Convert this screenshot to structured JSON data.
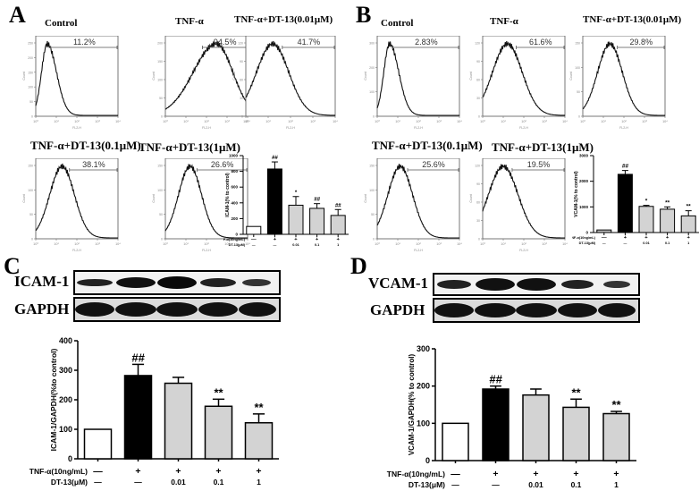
{
  "panels": {
    "A": {
      "letter": "A"
    },
    "B": {
      "letter": "B"
    },
    "C": {
      "letter": "C"
    },
    "D": {
      "letter": "D"
    }
  },
  "histograms": {
    "x_axis_label": "FL2-H",
    "y_axis_label": "Count",
    "A": [
      {
        "title": "Control",
        "percent": "11.2%",
        "ymax": 250,
        "yticks": [
          "0",
          "50",
          "100",
          "150",
          "200",
          "250"
        ]
      },
      {
        "title": "TNF-α",
        "percent": "94.5%",
        "ymax": 200,
        "yticks": [
          "0",
          "50",
          "100",
          "150",
          "200"
        ]
      },
      {
        "title": "TNF-α+DT-13(0.01μM)",
        "percent": "41.7%",
        "ymax": 120,
        "yticks": [
          "0",
          "30",
          "60",
          "90",
          "120"
        ]
      },
      {
        "title": "TNF-α+DT-13(0.1μM)",
        "percent": "38.1%",
        "ymax": 150,
        "yticks": [
          "0",
          "50",
          "100",
          "150"
        ]
      },
      {
        "title": "TNF-α+DT-13(1μM)",
        "percent": "26.6%",
        "ymax": 150,
        "yticks": [
          "0",
          "50",
          "100",
          "150"
        ]
      }
    ],
    "B": [
      {
        "title": "Control",
        "percent": "2.83%",
        "ymax": 300,
        "yticks": [
          "0",
          "100",
          "200",
          "300"
        ]
      },
      {
        "title": "TNF-α",
        "percent": "61.6%",
        "ymax": 120,
        "yticks": [
          "0",
          "30",
          "60",
          "90",
          "120"
        ]
      },
      {
        "title": "TNF-α+DT-13(0.01μM)",
        "percent": "29.8%",
        "ymax": 150,
        "yticks": [
          "0",
          "50",
          "100",
          "150"
        ]
      },
      {
        "title": "TNF-α+DT-13(0.1μM)",
        "percent": "25.6%",
        "ymax": 150,
        "yticks": [
          "0",
          "50",
          "100",
          "150"
        ]
      },
      {
        "title": "TNF-α+DT-13(1μM)",
        "percent": "19.5%",
        "ymax": 120,
        "yticks": [
          "0",
          "30",
          "60",
          "90",
          "120"
        ]
      }
    ],
    "xticks": [
      "10⁰",
      "10¹",
      "10²",
      "10³",
      "10⁴"
    ]
  },
  "blots": {
    "C": {
      "target": "ICAM-1",
      "loading": "GAPDH"
    },
    "D": {
      "target": "VCAM-1",
      "loading": "GAPDH"
    }
  },
  "conditions": {
    "tnf_label": "TNF-α(10ng/mL)",
    "dt_label": "DT-13(μM)",
    "tnf_values": [
      "—",
      "+",
      "+",
      "+",
      "+"
    ],
    "dt_values": [
      "—",
      "—",
      "0.01",
      "0.1",
      "1"
    ]
  },
  "chart_data": [
    {
      "id": "A-bar",
      "type": "bar",
      "title": "",
      "ylabel": "ICAM-1(% to control)",
      "ylim": [
        0,
        1000
      ],
      "yticks": [
        0,
        200,
        400,
        600,
        800,
        1000
      ],
      "categories": [
        "Control",
        "TNF-α",
        "TNF-α+DT-13 0.01",
        "TNF-α+DT-13 0.1",
        "TNF-α+DT-13 1"
      ],
      "values": [
        100,
        830,
        370,
        330,
        240
      ],
      "errors": [
        0,
        90,
        110,
        60,
        75
      ],
      "annotations": [
        "",
        "##",
        "*",
        "##",
        "##"
      ],
      "colors": [
        "#ffffff",
        "#000000",
        "#d3d3d3",
        "#d3d3d3",
        "#d3d3d3"
      ]
    },
    {
      "id": "B-bar",
      "type": "bar",
      "title": "",
      "ylabel": "VCAM-1(% to control)",
      "ylim": [
        0,
        3000
      ],
      "yticks": [
        0,
        1000,
        2000,
        3000
      ],
      "categories": [
        "Control",
        "TNF-α",
        "TNF-α+DT-13 0.01",
        "TNF-α+DT-13 0.1",
        "TNF-α+DT-13 1"
      ],
      "values": [
        100,
        2270,
        1020,
        910,
        650
      ],
      "errors": [
        0,
        150,
        40,
        90,
        200
      ],
      "annotations": [
        "",
        "##",
        "*",
        "**",
        "**"
      ],
      "colors": [
        "#bfbfbf",
        "#000000",
        "#d3d3d3",
        "#d3d3d3",
        "#d3d3d3"
      ]
    },
    {
      "id": "C-bar",
      "type": "bar",
      "title": "",
      "ylabel": "ICAM-1/GAPDH(%to control)",
      "ylim": [
        0,
        400
      ],
      "yticks": [
        0,
        100,
        200,
        300,
        400
      ],
      "categories": [
        "Control",
        "TNF-α",
        "TNF-α+DT-13 0.01",
        "TNF-α+DT-13 0.1",
        "TNF-α+DT-13 1"
      ],
      "values": [
        100,
        282,
        256,
        178,
        122
      ],
      "errors": [
        0,
        38,
        20,
        24,
        30
      ],
      "annotations": [
        "",
        "##",
        "",
        "**",
        "**"
      ],
      "colors": [
        "#ffffff",
        "#000000",
        "#d3d3d3",
        "#d3d3d3",
        "#d3d3d3"
      ]
    },
    {
      "id": "D-bar",
      "type": "bar",
      "title": "",
      "ylabel": "VCAM-1/GAPDH(% to control)",
      "ylim": [
        0,
        300
      ],
      "yticks": [
        0,
        100,
        200,
        300
      ],
      "categories": [
        "Control",
        "TNF-α",
        "TNF-α+DT-13 0.01",
        "TNF-α+DT-13 0.1",
        "TNF-α+DT-13 1"
      ],
      "values": [
        100,
        192,
        176,
        143,
        126
      ],
      "errors": [
        0,
        8,
        16,
        22,
        6
      ],
      "annotations": [
        "",
        "##",
        "",
        "**",
        "**"
      ],
      "colors": [
        "#ffffff",
        "#000000",
        "#d3d3d3",
        "#d3d3d3",
        "#d3d3d3"
      ]
    }
  ]
}
